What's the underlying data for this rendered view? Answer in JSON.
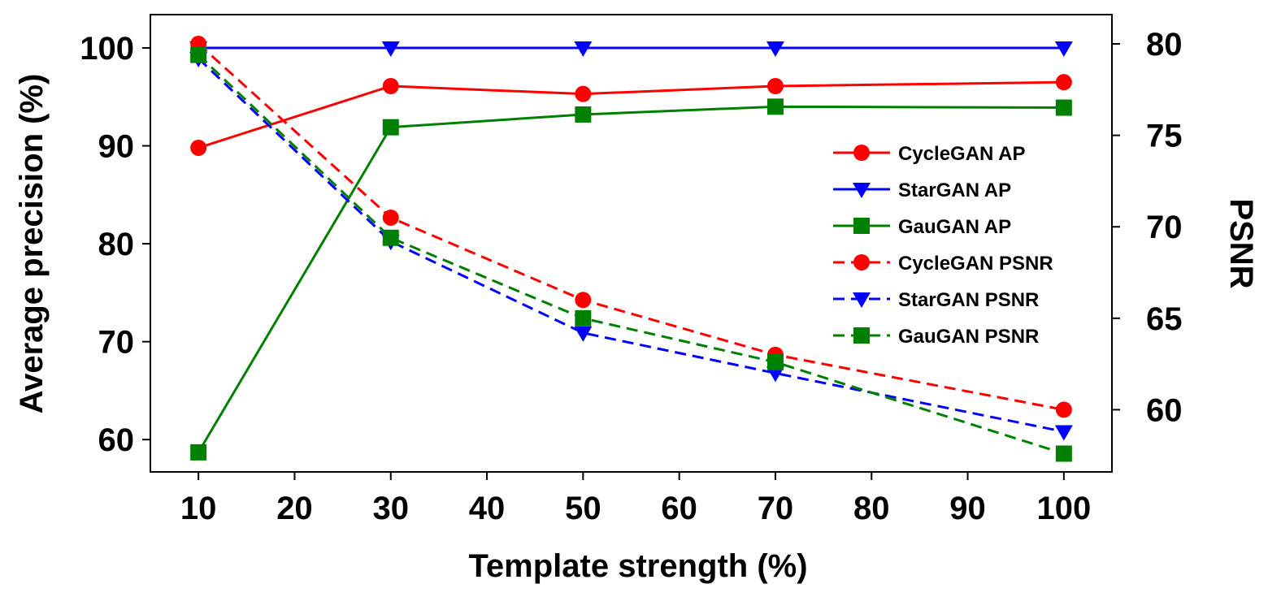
{
  "chart_data": {
    "type": "line",
    "xlabel": "Template strength (%)",
    "ylabel": "Average precision (%)",
    "y2label": "PSNR",
    "x_ticks": [
      10,
      20,
      30,
      40,
      50,
      60,
      70,
      80,
      90,
      100
    ],
    "y_ticks": [
      60,
      70,
      80,
      90,
      100
    ],
    "y2_ticks": [
      60,
      65,
      70,
      75,
      80
    ],
    "xlim": [
      5,
      105
    ],
    "ylim": [
      56.7,
      103.4
    ],
    "y2lim": [
      56.6,
      81.6
    ],
    "grid": false,
    "legend_position": "right",
    "x": [
      10,
      30,
      50,
      70,
      100
    ],
    "series": [
      {
        "name": "CycleGAN AP",
        "axis": "left",
        "color": "#ff0000",
        "marker": "circle",
        "dashed": false,
        "values": [
          89.8,
          96.1,
          95.3,
          96.1,
          96.5
        ]
      },
      {
        "name": "StarGAN AP",
        "axis": "left",
        "color": "#0000ff",
        "marker": "triangle-down",
        "dashed": false,
        "values": [
          100,
          100,
          100,
          100,
          100
        ]
      },
      {
        "name": "GauGAN AP",
        "axis": "left",
        "color": "#008000",
        "marker": "square",
        "dashed": false,
        "values": [
          58.7,
          91.9,
          93.2,
          94.0,
          93.9
        ]
      },
      {
        "name": "CycleGAN PSNR",
        "axis": "right",
        "color": "#ff0000",
        "marker": "circle",
        "dashed": true,
        "values": [
          80.0,
          70.5,
          66.0,
          63.0,
          60.0
        ]
      },
      {
        "name": "StarGAN PSNR",
        "axis": "right",
        "color": "#0000ff",
        "marker": "triangle-down",
        "dashed": true,
        "values": [
          79.2,
          69.2,
          64.2,
          62.0,
          58.8
        ]
      },
      {
        "name": "GauGAN PSNR",
        "axis": "right",
        "color": "#008000",
        "marker": "square",
        "dashed": true,
        "values": [
          79.4,
          69.4,
          65.0,
          62.6,
          57.6
        ]
      }
    ]
  }
}
